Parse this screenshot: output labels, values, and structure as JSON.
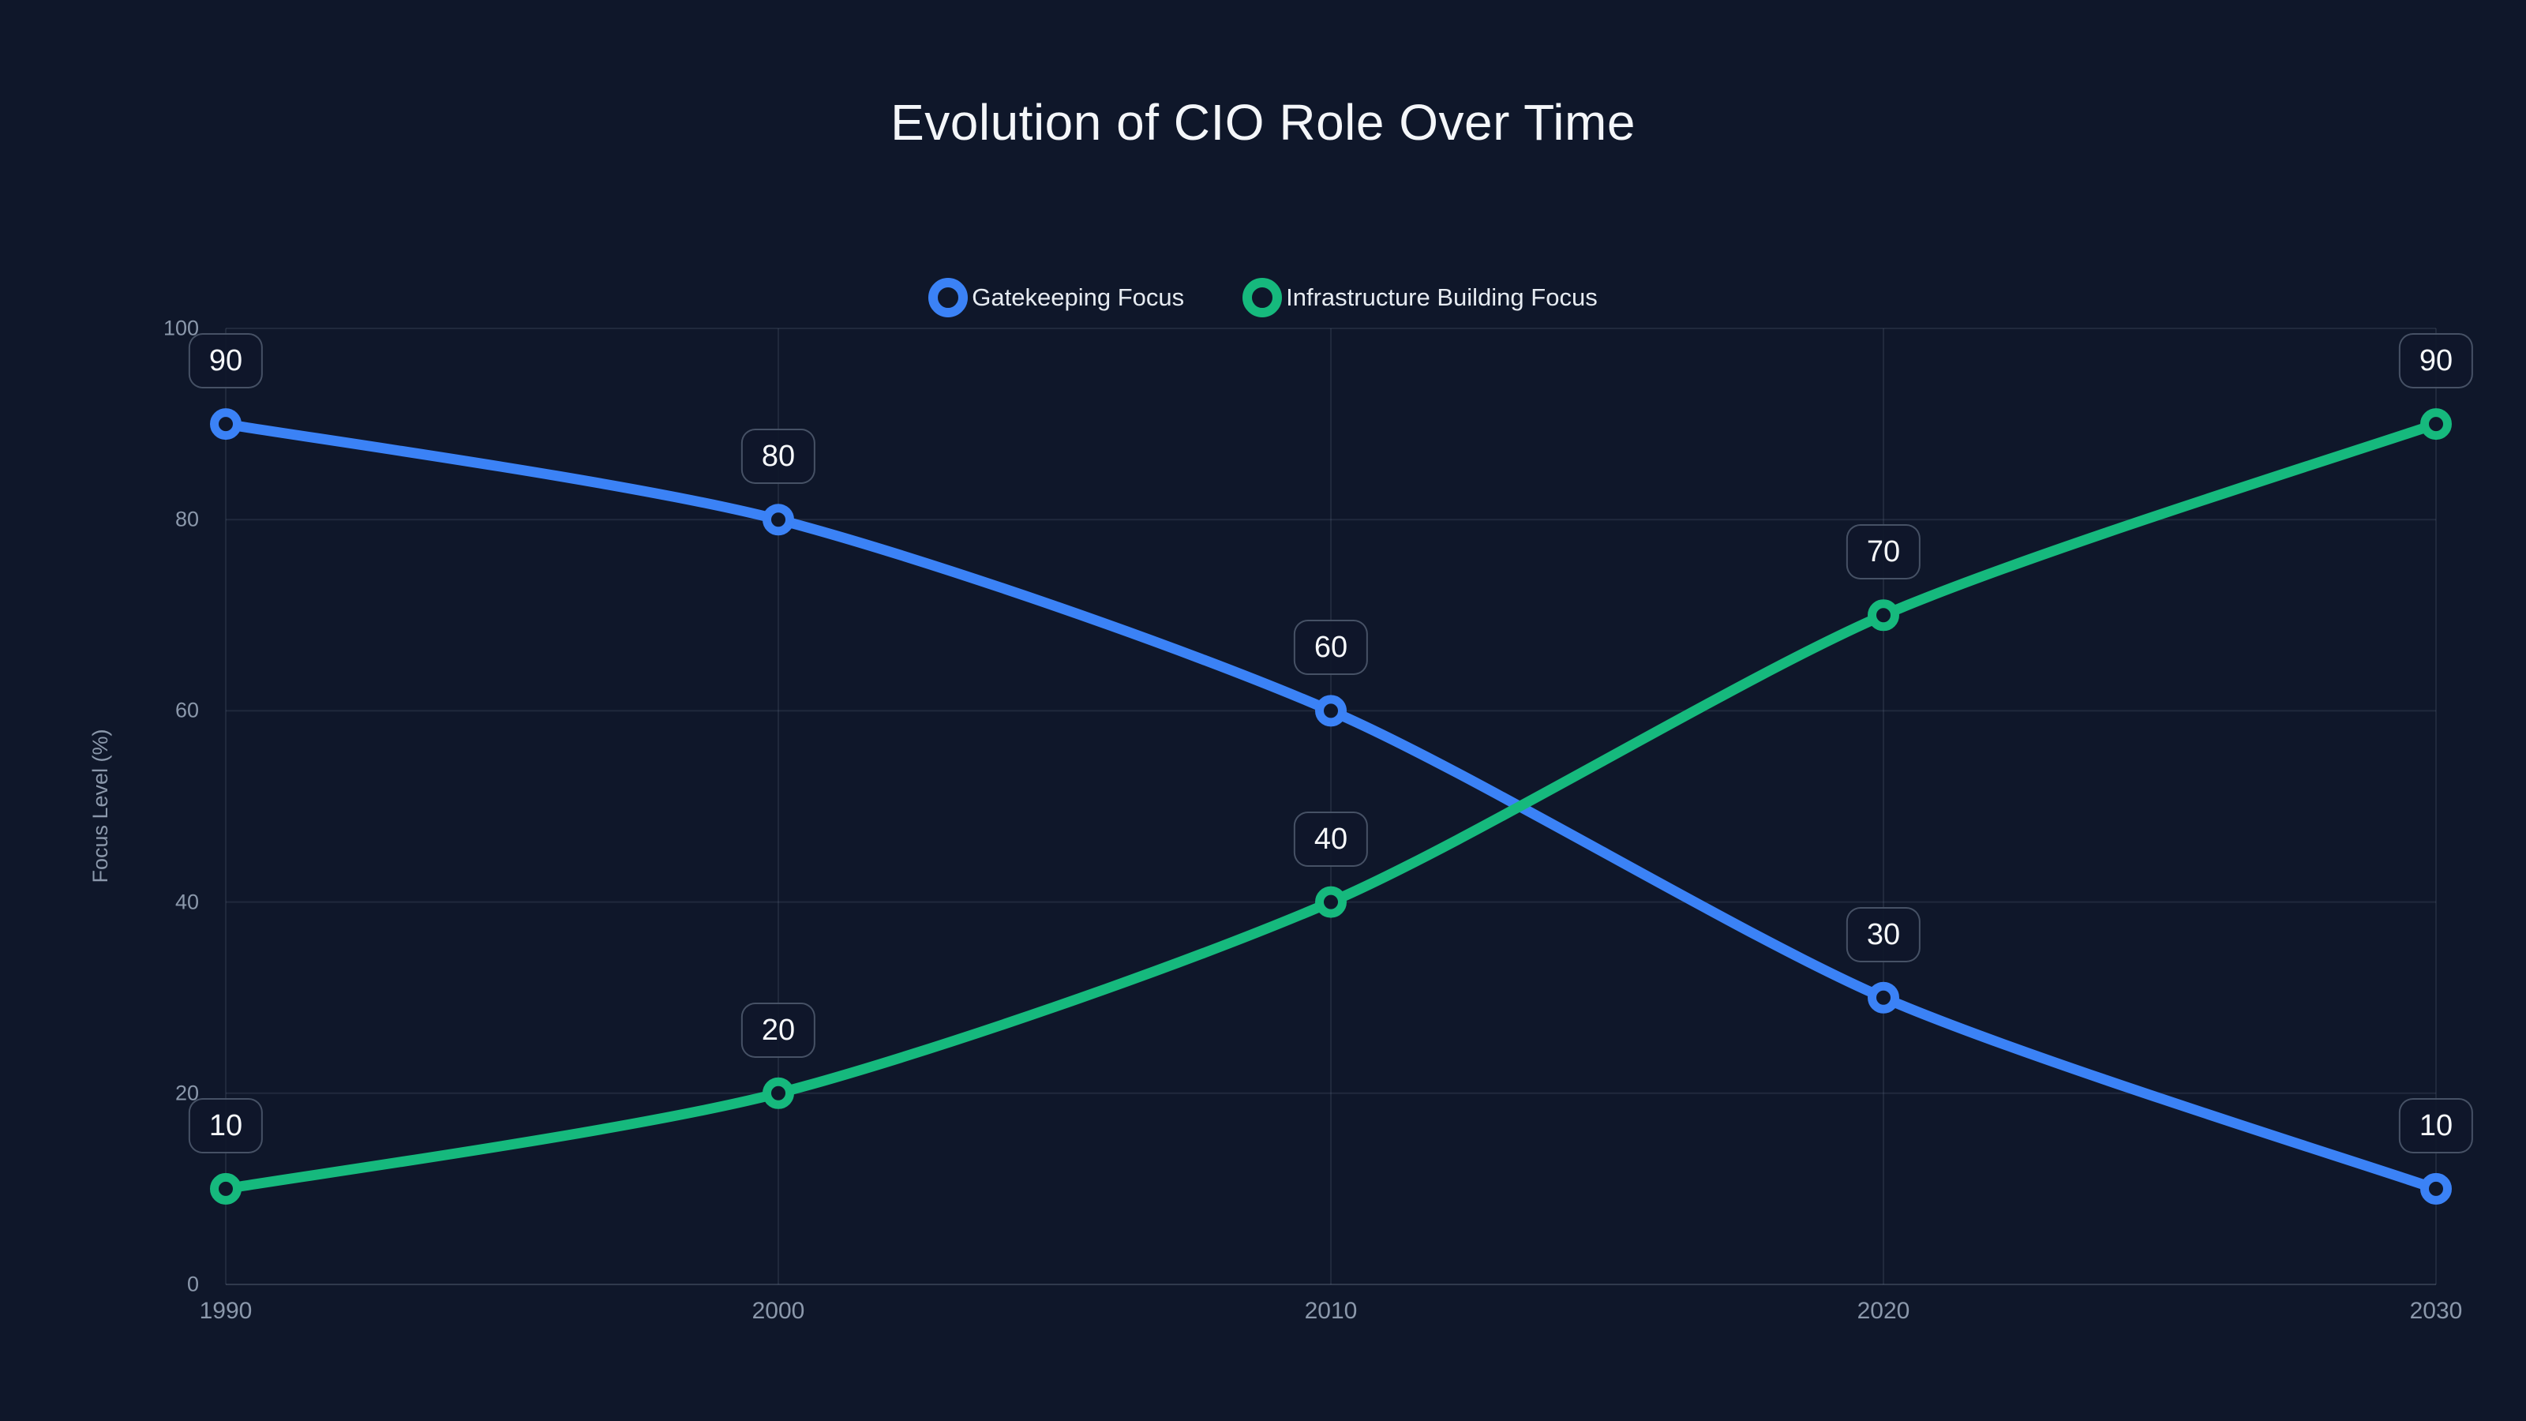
{
  "title": "Evolution of CIO Role Over Time",
  "colors": {
    "background": "#0f172a",
    "title_text": "#f4f6f9",
    "tick_text": "#8b98ab",
    "grid": "rgba(148,163,184,0.13)",
    "axis_line": "rgba(148,163,184,0.25)",
    "label_box_border": "rgba(148,163,184,0.42)",
    "label_box_bg": "rgba(15,23,42,0.92)",
    "series_blue": "#3b82f6",
    "series_green": "#16b97d"
  },
  "chart_data": {
    "type": "line",
    "title": "Evolution of CIO Role Over Time",
    "x": [
      1990,
      2000,
      2010,
      2020,
      2030
    ],
    "xlim": [
      1990,
      2030
    ],
    "ylim": [
      0,
      100
    ],
    "yticks": [
      0,
      20,
      40,
      60,
      80,
      100
    ],
    "ylabel": "Focus Level (%)",
    "xlabel": "",
    "grid": true,
    "legend_position": "top",
    "point_labels": true,
    "series": [
      {
        "name": "Gatekeeping Focus",
        "color": "#3b82f6",
        "values": [
          90,
          80,
          60,
          30,
          10
        ]
      },
      {
        "name": "Infrastructure Building Focus",
        "color": "#16b97d",
        "values": [
          10,
          20,
          40,
          70,
          90
        ]
      }
    ]
  }
}
